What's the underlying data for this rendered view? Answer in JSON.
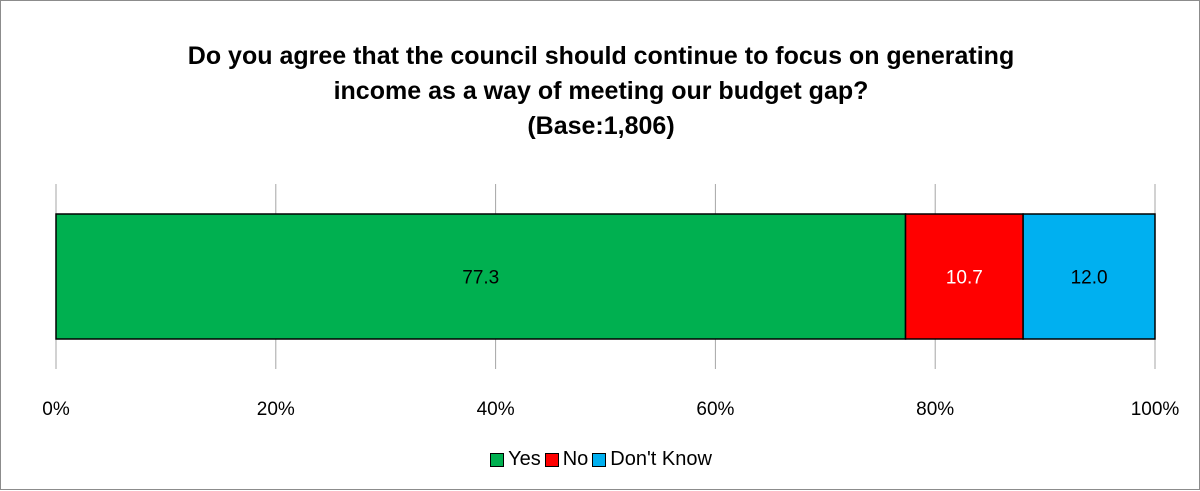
{
  "chart_data": {
    "type": "bar",
    "orientation": "horizontal",
    "stacked": true,
    "title_lines": [
      "Do you agree that the council should continue to focus on generating",
      "income as a way of meeting our budget gap?",
      "(Base:1,806)"
    ],
    "categories": [
      ""
    ],
    "series": [
      {
        "name": "Yes",
        "values": [
          77.3
        ],
        "color": "#00b050",
        "label": "77.3",
        "label_color": "#000000"
      },
      {
        "name": "No",
        "values": [
          10.7
        ],
        "color": "#ff0000",
        "label": "10.7",
        "label_color": "#ffffff"
      },
      {
        "name": "Don't Know",
        "values": [
          12.0
        ],
        "color": "#00b0f0",
        "label": "12.0",
        "label_color": "#000000"
      }
    ],
    "xlim": [
      0,
      100
    ],
    "xticks": [
      0,
      20,
      40,
      60,
      80,
      100
    ],
    "xtick_labels": [
      "0%",
      "20%",
      "40%",
      "60%",
      "80%",
      "100%"
    ],
    "grid": "vertical",
    "legend_position": "bottom"
  }
}
